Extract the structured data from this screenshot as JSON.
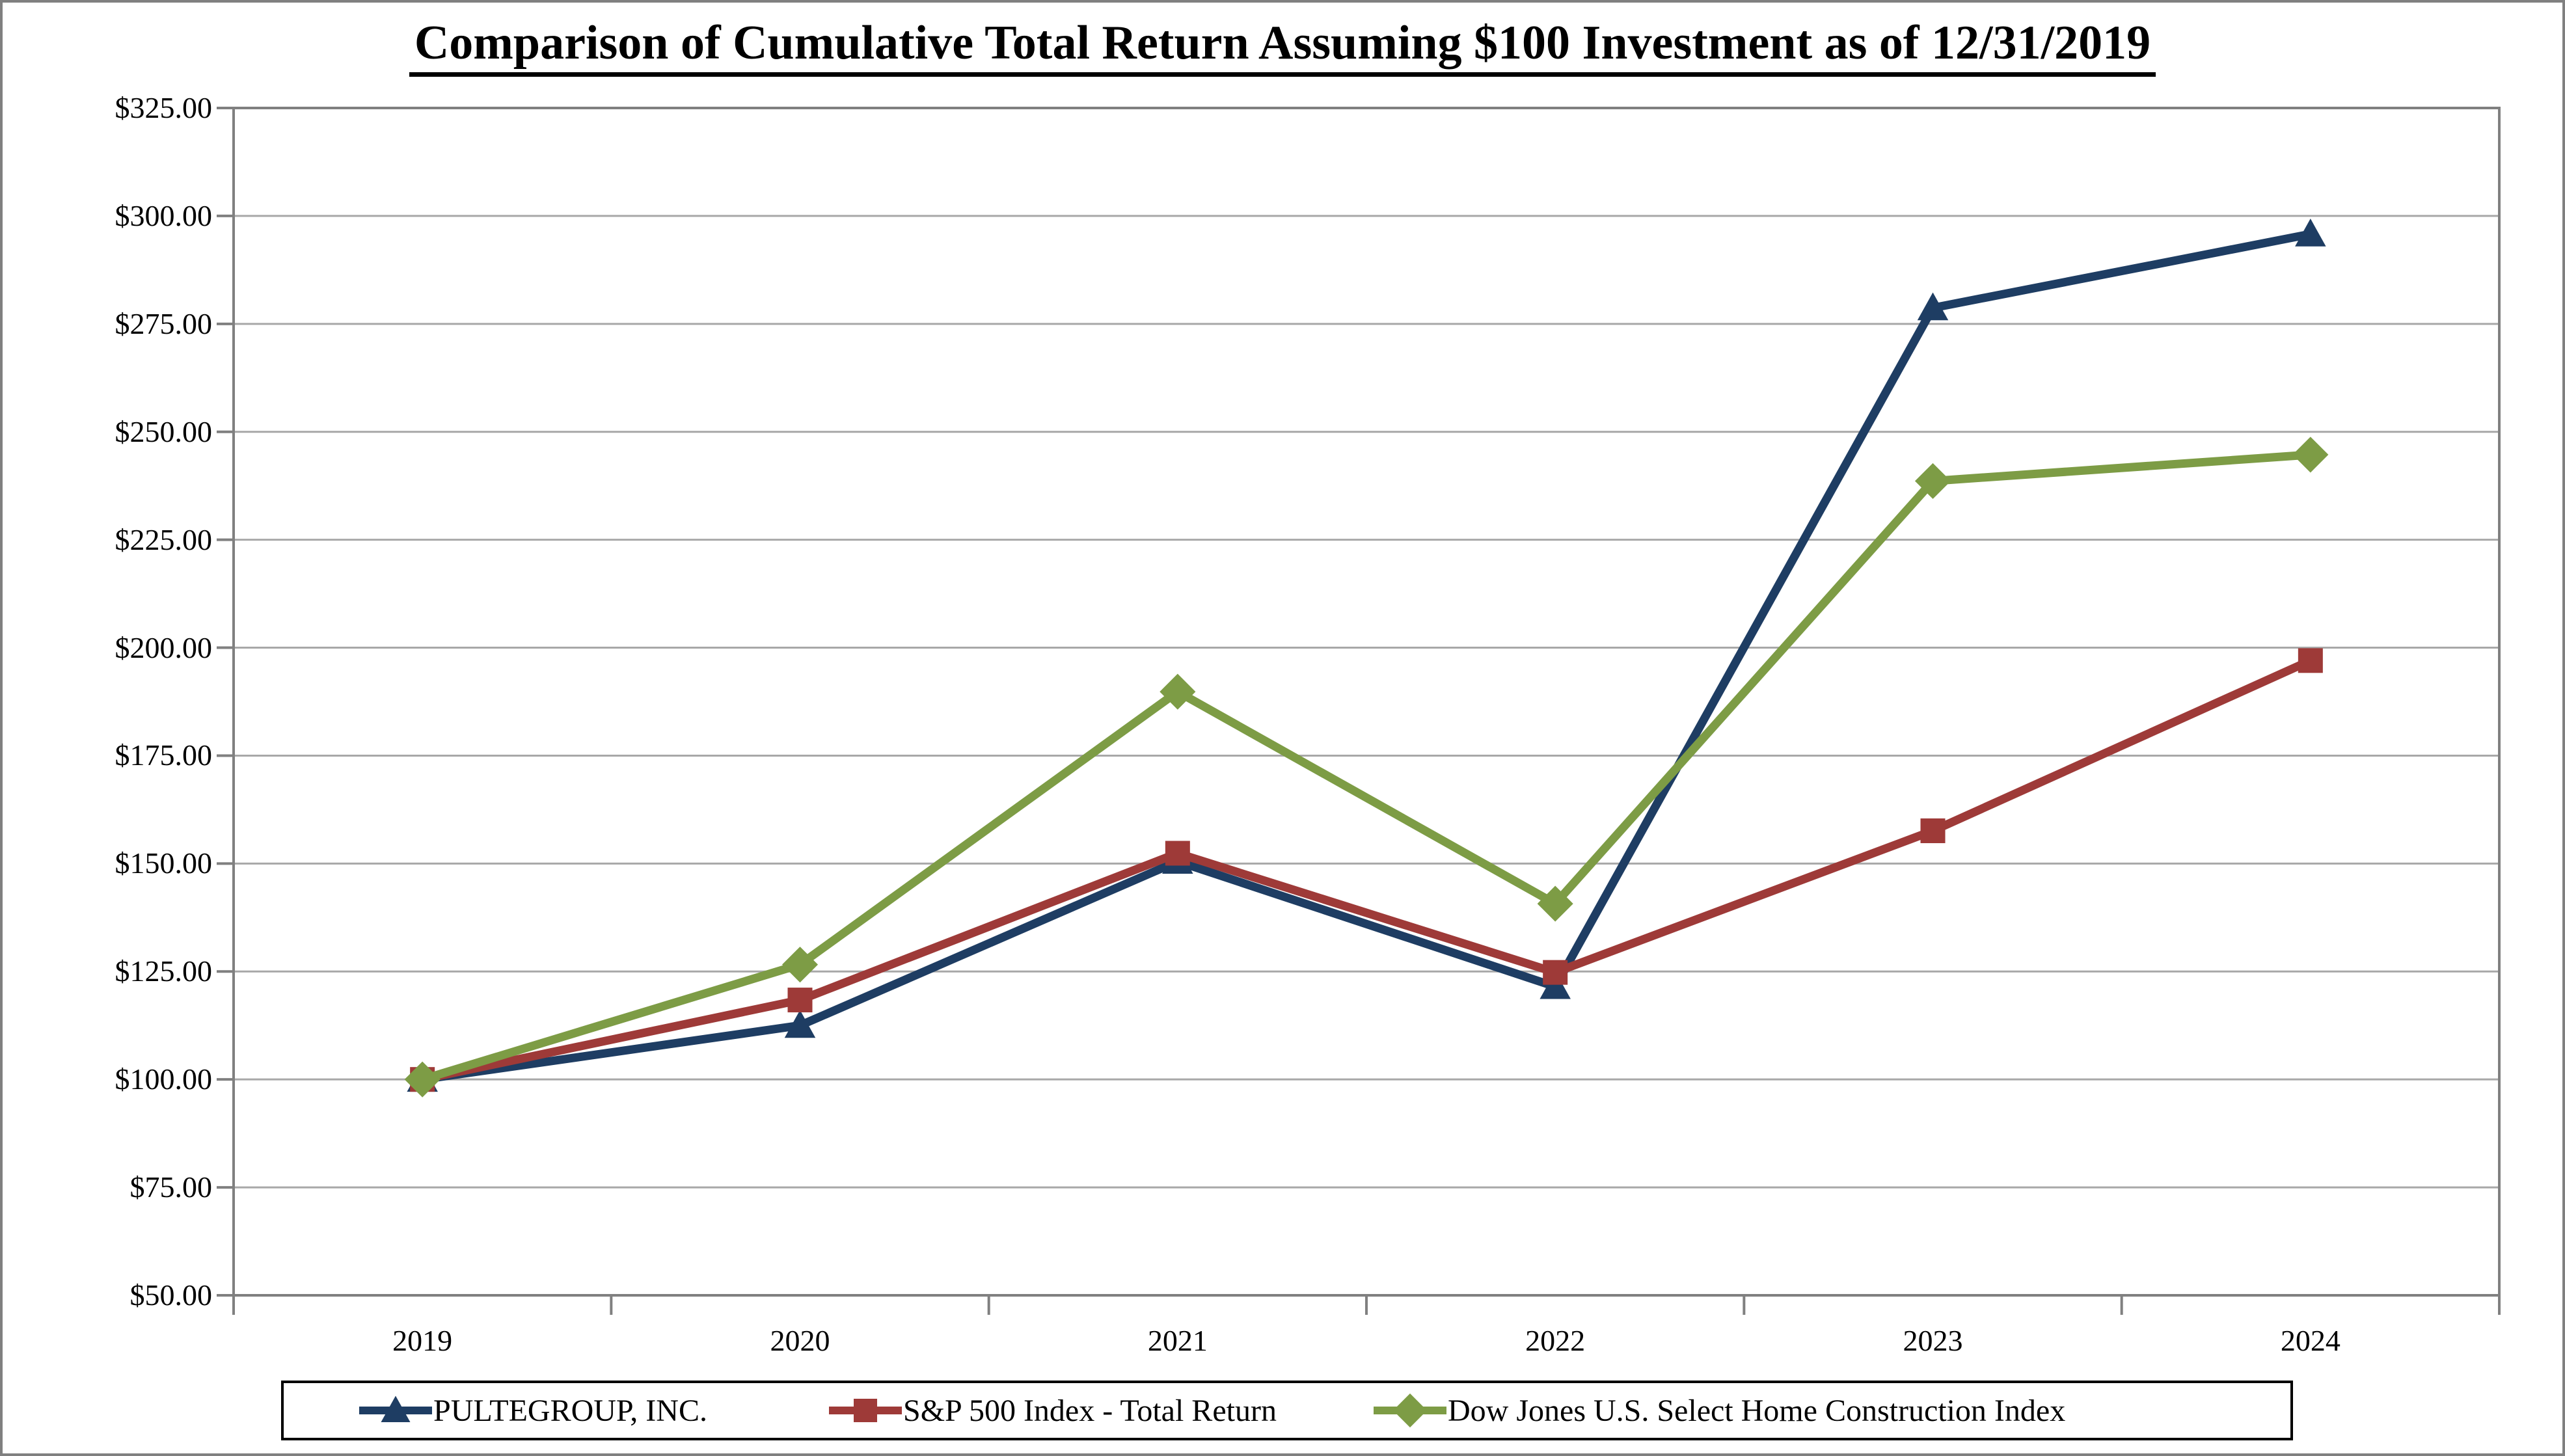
{
  "page": {
    "background": "#ffffff",
    "frame_border_color": "#808080"
  },
  "chart_data": {
    "type": "line",
    "title": "Comparison of Cumulative Total Return Assuming $100 Investment as of 12/31/2019",
    "categories": [
      "2019",
      "2020",
      "2021",
      "2022",
      "2023",
      "2024"
    ],
    "series": [
      {
        "name": "PULTEGROUP, INC.",
        "marker": "triangle",
        "color": "#1e3d63",
        "values": [
          100.0,
          112.5,
          150.5,
          121.5,
          278.7,
          295.8
        ]
      },
      {
        "name": "S&P 500 Index - Total Return",
        "marker": "square",
        "color": "#9e3a38",
        "values": [
          100.0,
          118.4,
          152.39,
          124.79,
          157.59,
          197.02
        ]
      },
      {
        "name": "Dow Jones U.S. Select Home Construction Index",
        "marker": "diamond",
        "color": "#7d9c45",
        "values": [
          100.0,
          126.6,
          189.8,
          140.7,
          238.6,
          244.7
        ]
      }
    ],
    "ylim": [
      50,
      325
    ],
    "y_tick_step": 25,
    "y_tick_labels": [
      "$50.00",
      "$75.00",
      "$100.00",
      "$125.00",
      "$150.00",
      "$175.00",
      "$200.00",
      "$225.00",
      "$250.00",
      "$275.00",
      "$300.00",
      "$325.00"
    ],
    "grid": "horizontal-light-grey",
    "legend_position": "bottom",
    "axis_color": "#808080",
    "gridline_color": "#a8a8a8"
  }
}
